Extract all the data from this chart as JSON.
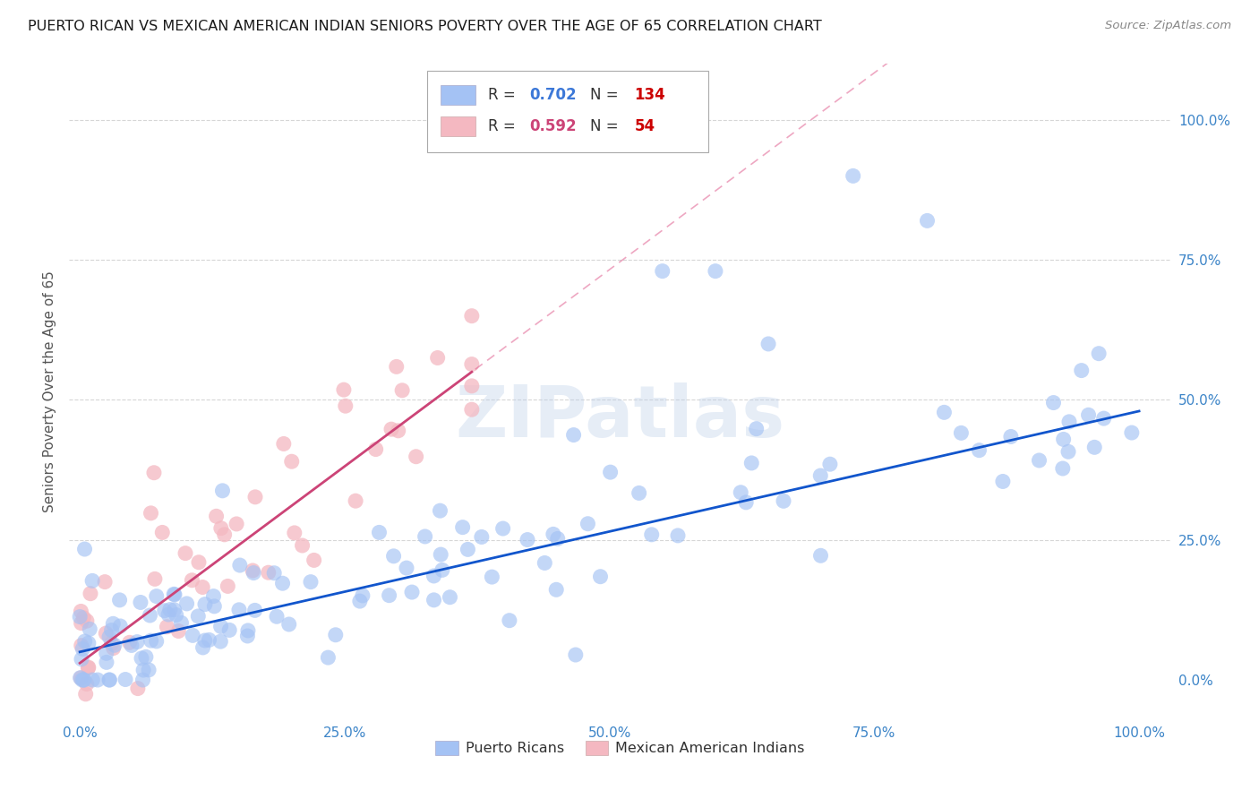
{
  "title": "PUERTO RICAN VS MEXICAN AMERICAN INDIAN SENIORS POVERTY OVER THE AGE OF 65 CORRELATION CHART",
  "source": "Source: ZipAtlas.com",
  "ylabel": "Seniors Poverty Over the Age of 65",
  "xticklabels": [
    "0.0%",
    "",
    "25.0%",
    "",
    "50.0%",
    "",
    "75.0%",
    "",
    "100.0%"
  ],
  "yticklabels": [
    "0.0%",
    "25.0%",
    "50.0%",
    "75.0%",
    "100.0%"
  ],
  "blue_color": "#a4c2f4",
  "blue_line_color": "#1155cc",
  "pink_color": "#f4b8c1",
  "pink_line_color": "#cc4477",
  "pink_dash_color": "#e06090",
  "watermark": "ZIPatlas",
  "legend_blue_r": "0.702",
  "legend_blue_n": "134",
  "legend_pink_r": "0.592",
  "legend_pink_n": "54",
  "legend_r_color": "#3c78d8",
  "legend_n_color": "#cc0000",
  "legend_pink_r_color": "#cc4477",
  "legend_pink_n_color": "#cc0000",
  "background_color": "#ffffff",
  "grid_color": "#cccccc",
  "title_fontsize": 11.5,
  "tick_label_fontsize": 11,
  "tick_label_color": "#3d85c8",
  "ylabel_color": "#555555",
  "ylabel_fontsize": 11
}
